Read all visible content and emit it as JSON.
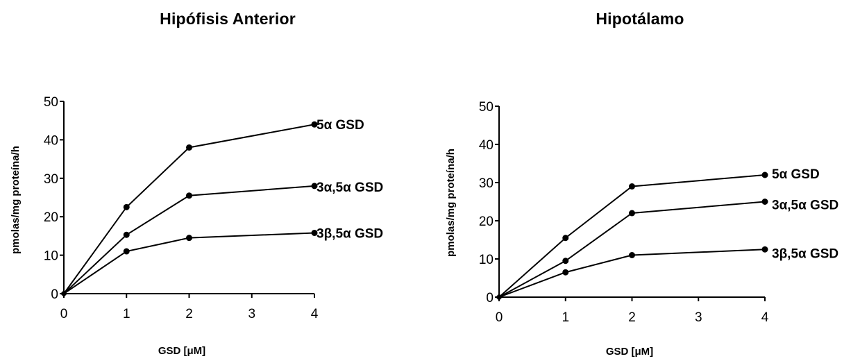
{
  "chart_data": [
    {
      "type": "line",
      "title": "Hipófisis Anterior",
      "xlabel": "GSD [μM]",
      "ylabel": "pmolas/mg proteína/h",
      "x": [
        0,
        1,
        2,
        4
      ],
      "x_ticks": [
        "0",
        "1",
        "2",
        "3",
        "4"
      ],
      "y_ticks": [
        "0",
        "10",
        "20",
        "30",
        "40",
        "50"
      ],
      "xlim": [
        0,
        4
      ],
      "ylim": [
        0,
        50
      ],
      "grid": false,
      "series": [
        {
          "name": "5α GSD",
          "values": [
            0,
            22.5,
            38,
            44
          ]
        },
        {
          "name": "3α,5α GSD",
          "values": [
            0,
            15.3,
            25.5,
            28
          ]
        },
        {
          "name": "3β,5α GSD",
          "values": [
            0,
            11,
            14.5,
            15.8
          ]
        }
      ]
    },
    {
      "type": "line",
      "title": "Hipotálamo",
      "xlabel": "GSD [μM]",
      "ylabel": "pmolas/mg proteína/h",
      "x": [
        0,
        1,
        2,
        4
      ],
      "x_ticks": [
        "0",
        "1",
        "2",
        "3",
        "4"
      ],
      "y_ticks": [
        "0",
        "10",
        "20",
        "30",
        "40",
        "50"
      ],
      "xlim": [
        0,
        4
      ],
      "ylim": [
        0,
        50
      ],
      "grid": false,
      "series": [
        {
          "name": "5α GSD",
          "values": [
            0,
            15.5,
            29,
            32
          ]
        },
        {
          "name": "3α,5α GSD",
          "values": [
            0,
            9.5,
            22,
            25
          ]
        },
        {
          "name": "3β,5α GSD",
          "values": [
            0,
            6.5,
            11,
            12.5
          ]
        }
      ]
    }
  ]
}
